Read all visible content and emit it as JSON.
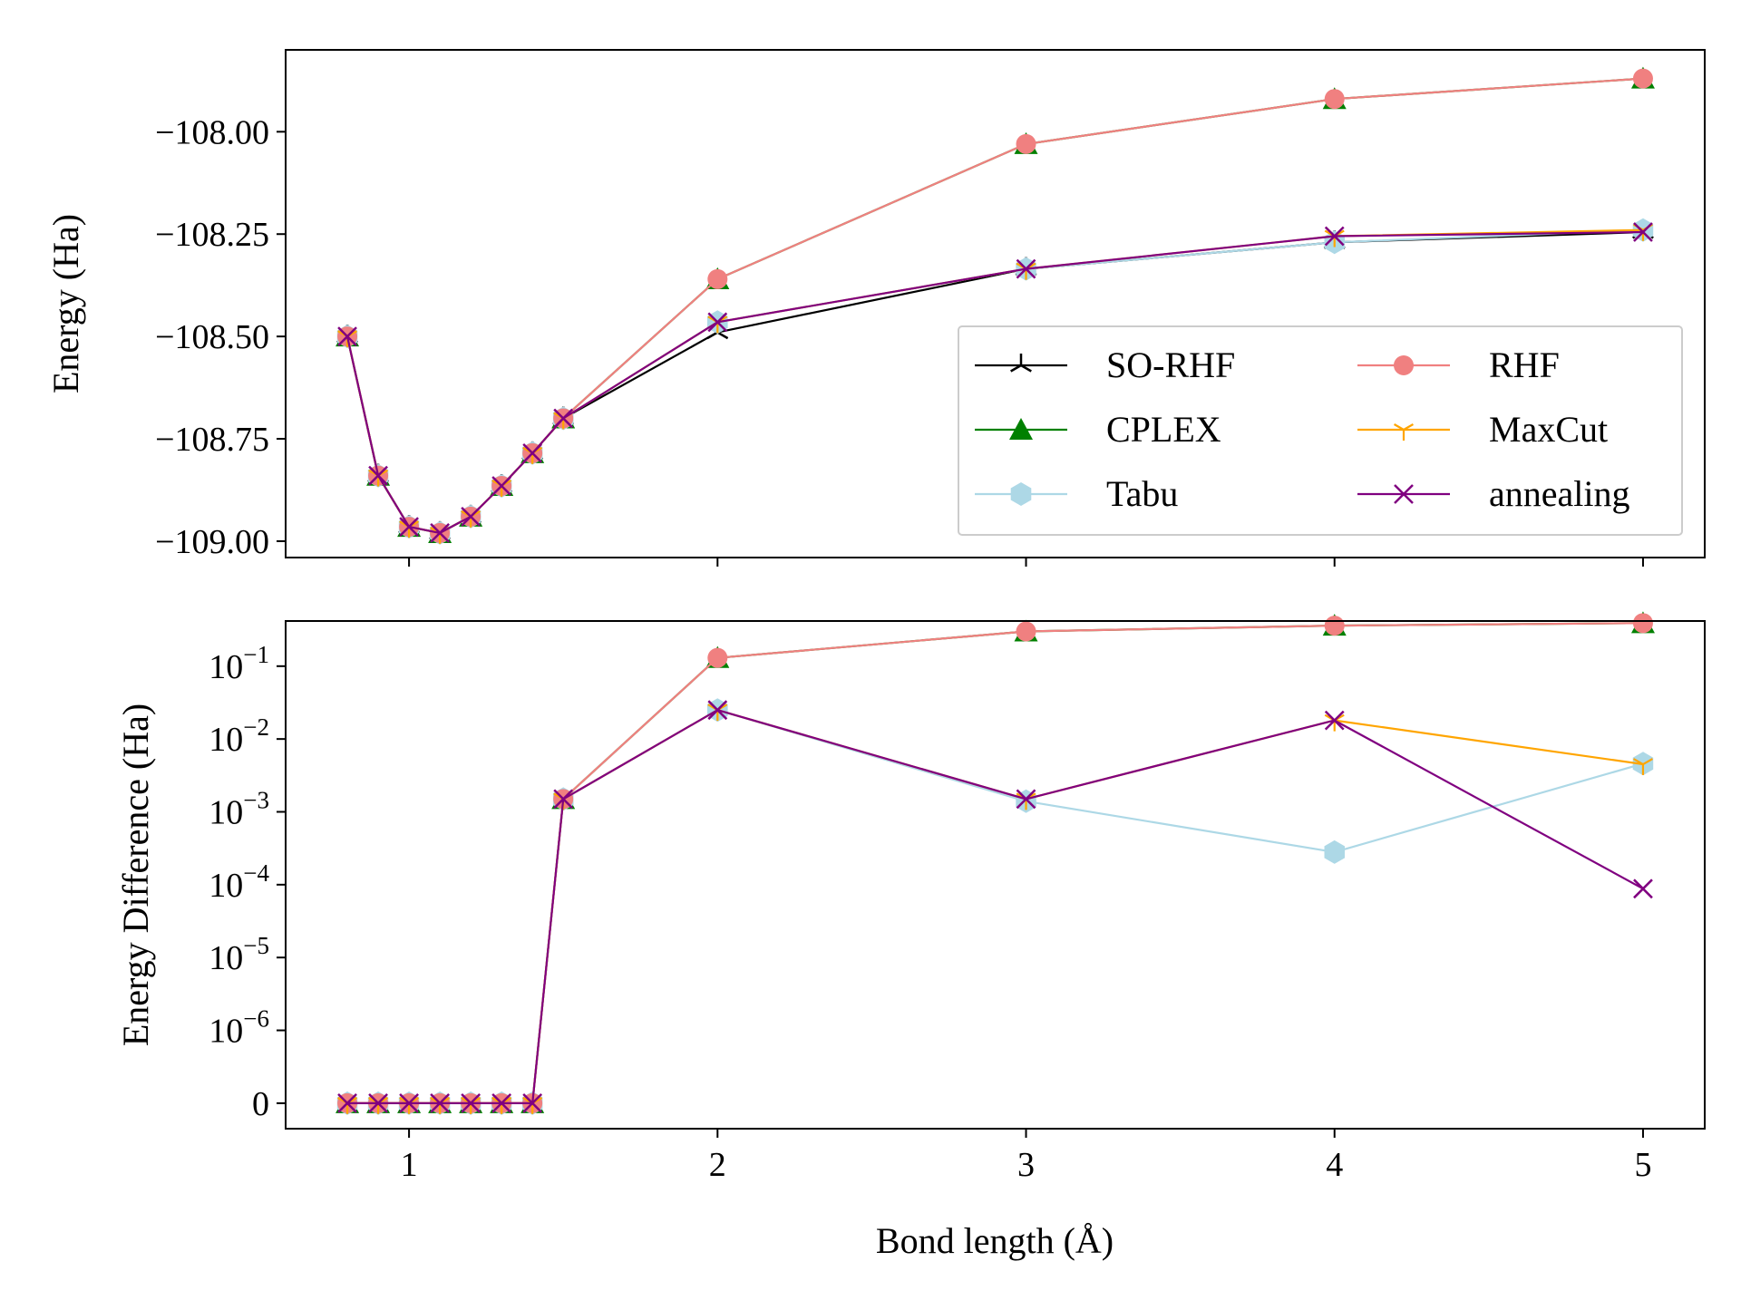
{
  "chart_data": [
    {
      "type": "line",
      "title": "",
      "xlabel": "",
      "ylabel": "Energy (Ha)",
      "xlim": [
        0.6,
        5.2
      ],
      "ylim": [
        -109.04,
        -107.8
      ],
      "xticks": [
        1,
        2,
        3,
        4,
        5
      ],
      "yticks": [
        -108.0,
        -108.25,
        -108.5,
        -108.75,
        -109.0
      ],
      "ytick_labels": [
        "−108.00",
        "−108.25",
        "−108.50",
        "−108.75",
        "−109.00"
      ],
      "legend": {
        "placement": "lower-right",
        "columns": 2
      },
      "x": [
        0.8,
        0.9,
        1.0,
        1.1,
        1.2,
        1.3,
        1.4,
        1.5,
        2.0,
        3.0,
        4.0,
        5.0
      ],
      "series": [
        {
          "name": "SO-RHF",
          "color": "#000000",
          "marker": "tri",
          "values": [
            -108.5,
            -108.84,
            -108.965,
            -108.98,
            -108.94,
            -108.865,
            -108.785,
            -108.7,
            -108.49,
            -108.335,
            -108.27,
            -108.245
          ]
        },
        {
          "name": "CPLEX",
          "color": "#008000",
          "marker": "triangle",
          "values": [
            -108.5,
            -108.84,
            -108.965,
            -108.98,
            -108.94,
            -108.865,
            -108.785,
            -108.7,
            -108.36,
            -108.03,
            -107.92,
            -107.87
          ]
        },
        {
          "name": "Tabu",
          "color": "#add8e6",
          "marker": "hexagon",
          "values": [
            -108.5,
            -108.84,
            -108.965,
            -108.98,
            -108.94,
            -108.865,
            -108.785,
            -108.7,
            -108.465,
            -108.335,
            -108.27,
            -108.24
          ]
        },
        {
          "name": "RHF",
          "color": "#f08080",
          "marker": "circle",
          "values": [
            -108.5,
            -108.84,
            -108.965,
            -108.98,
            -108.94,
            -108.865,
            -108.785,
            -108.7,
            -108.36,
            -108.03,
            -107.92,
            -107.87
          ]
        },
        {
          "name": "MaxCut",
          "color": "#ffa500",
          "marker": "y",
          "values": [
            -108.5,
            -108.84,
            -108.965,
            -108.98,
            -108.94,
            -108.865,
            -108.785,
            -108.7,
            -108.465,
            -108.335,
            -108.255,
            -108.24
          ]
        },
        {
          "name": "annealing",
          "color": "#800080",
          "marker": "x",
          "values": [
            -108.5,
            -108.84,
            -108.965,
            -108.98,
            -108.94,
            -108.865,
            -108.785,
            -108.7,
            -108.465,
            -108.335,
            -108.255,
            -108.245
          ]
        }
      ]
    },
    {
      "type": "line",
      "title": "",
      "xlabel": "Bond length (Å)",
      "ylabel": "Energy Difference (Ha)",
      "yscale": "symlog",
      "xlim": [
        0.6,
        5.2
      ],
      "xticks": [
        1,
        2,
        3,
        4,
        5
      ],
      "ytick_labels": [
        {
          "base": "0",
          "exp": ""
        },
        {
          "base": "10",
          "exp": "−6"
        },
        {
          "base": "10",
          "exp": "−5"
        },
        {
          "base": "10",
          "exp": "−4"
        },
        {
          "base": "10",
          "exp": "−3"
        },
        {
          "base": "10",
          "exp": "−2"
        },
        {
          "base": "10",
          "exp": "−1"
        }
      ],
      "x": [
        0.8,
        0.9,
        1.0,
        1.1,
        1.2,
        1.3,
        1.4,
        1.5,
        2.0,
        3.0,
        4.0,
        5.0
      ],
      "series": [
        {
          "name": "CPLEX",
          "color": "#008000",
          "marker": "triangle",
          "values": [
            0,
            0,
            0,
            0,
            0,
            0,
            0,
            0.0015,
            0.13,
            0.3,
            0.36,
            0.39
          ]
        },
        {
          "name": "Tabu",
          "color": "#add8e6",
          "marker": "hexagon",
          "values": [
            0,
            0,
            0,
            0,
            0,
            0,
            0,
            0.0015,
            0.025,
            0.0014,
            0.00028,
            0.0046
          ]
        },
        {
          "name": "RHF",
          "color": "#f08080",
          "marker": "circle",
          "values": [
            0,
            0,
            0,
            0,
            0,
            0,
            0,
            0.0015,
            0.13,
            0.3,
            0.36,
            0.39
          ]
        },
        {
          "name": "MaxCut",
          "color": "#ffa500",
          "marker": "y",
          "values": [
            0,
            0,
            0,
            0,
            0,
            0,
            0,
            0.0015,
            0.025,
            0.0015,
            0.018,
            0.0045
          ]
        },
        {
          "name": "annealing",
          "color": "#800080",
          "marker": "x",
          "values": [
            0,
            0,
            0,
            0,
            0,
            0,
            0,
            0.0015,
            0.025,
            0.0015,
            0.018,
            8.8e-05
          ]
        }
      ]
    }
  ]
}
